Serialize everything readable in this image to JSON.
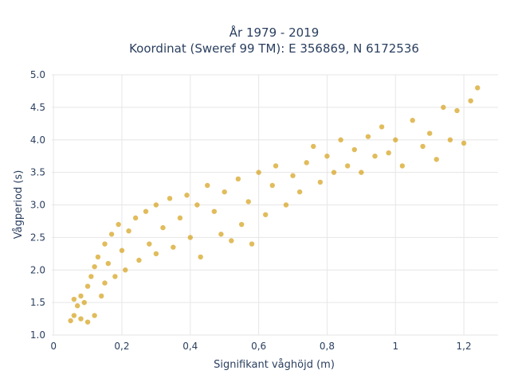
{
  "chart_data": {
    "type": "scatter",
    "title_line1": "År 1979 - 2019",
    "title_line2": "Koordinat (Sweref 99 TM): E 356869, N 6172536",
    "xlabel": "Signifikant våghöjd (m)",
    "ylabel": "Vågperiod (s)",
    "xlim": [
      -0.005,
      1.3
    ],
    "ylim": [
      1.0,
      5.0
    ],
    "x_ticks": [
      0,
      0.2,
      0.4,
      0.6,
      0.8,
      1,
      1.2
    ],
    "x_tick_labels": [
      "0",
      "0,2",
      "0,4",
      "0,6",
      "0,8",
      "1",
      "1,2"
    ],
    "y_ticks": [
      1.0,
      1.5,
      2.0,
      2.5,
      3.0,
      3.5,
      4.0,
      4.5,
      5.0
    ],
    "y_tick_labels": [
      "1.0",
      "1.5",
      "2.0",
      "2.5",
      "3.0",
      "3.5",
      "4.0",
      "4.5",
      "5.0"
    ],
    "grid": true,
    "marker_color": "#D4A017",
    "points": [
      [
        0.05,
        1.22
      ],
      [
        0.06,
        1.3
      ],
      [
        0.06,
        1.55
      ],
      [
        0.07,
        1.45
      ],
      [
        0.08,
        1.25
      ],
      [
        0.08,
        1.6
      ],
      [
        0.09,
        1.5
      ],
      [
        0.1,
        1.2
      ],
      [
        0.1,
        1.75
      ],
      [
        0.11,
        1.9
      ],
      [
        0.12,
        2.05
      ],
      [
        0.12,
        1.3
      ],
      [
        0.13,
        2.2
      ],
      [
        0.14,
        1.6
      ],
      [
        0.15,
        2.4
      ],
      [
        0.15,
        1.8
      ],
      [
        0.16,
        2.1
      ],
      [
        0.17,
        2.55
      ],
      [
        0.18,
        1.9
      ],
      [
        0.19,
        2.7
      ],
      [
        0.2,
        2.3
      ],
      [
        0.21,
        2.0
      ],
      [
        0.22,
        2.6
      ],
      [
        0.24,
        2.8
      ],
      [
        0.25,
        2.15
      ],
      [
        0.27,
        2.9
      ],
      [
        0.28,
        2.4
      ],
      [
        0.3,
        3.0
      ],
      [
        0.3,
        2.25
      ],
      [
        0.32,
        2.65
      ],
      [
        0.34,
        3.1
      ],
      [
        0.35,
        2.35
      ],
      [
        0.37,
        2.8
      ],
      [
        0.39,
        3.15
      ],
      [
        0.4,
        2.5
      ],
      [
        0.42,
        3.0
      ],
      [
        0.43,
        2.2
      ],
      [
        0.45,
        3.3
      ],
      [
        0.47,
        2.9
      ],
      [
        0.49,
        2.55
      ],
      [
        0.5,
        3.2
      ],
      [
        0.52,
        2.45
      ],
      [
        0.54,
        3.4
      ],
      [
        0.55,
        2.7
      ],
      [
        0.57,
        3.05
      ],
      [
        0.58,
        2.4
      ],
      [
        0.6,
        3.5
      ],
      [
        0.62,
        2.85
      ],
      [
        0.64,
        3.3
      ],
      [
        0.65,
        3.6
      ],
      [
        0.68,
        3.0
      ],
      [
        0.7,
        3.45
      ],
      [
        0.72,
        3.2
      ],
      [
        0.74,
        3.65
      ],
      [
        0.76,
        3.9
      ],
      [
        0.78,
        3.35
      ],
      [
        0.8,
        3.75
      ],
      [
        0.82,
        3.5
      ],
      [
        0.84,
        4.0
      ],
      [
        0.86,
        3.6
      ],
      [
        0.88,
        3.85
      ],
      [
        0.9,
        3.5
      ],
      [
        0.92,
        4.05
      ],
      [
        0.94,
        3.75
      ],
      [
        0.96,
        4.2
      ],
      [
        0.98,
        3.8
      ],
      [
        1.0,
        4.0
      ],
      [
        1.02,
        3.6
      ],
      [
        1.05,
        4.3
      ],
      [
        1.08,
        3.9
      ],
      [
        1.1,
        4.1
      ],
      [
        1.12,
        3.7
      ],
      [
        1.14,
        4.5
      ],
      [
        1.16,
        4.0
      ],
      [
        1.18,
        4.45
      ],
      [
        1.2,
        3.95
      ],
      [
        1.22,
        4.6
      ],
      [
        1.24,
        4.8
      ]
    ]
  }
}
